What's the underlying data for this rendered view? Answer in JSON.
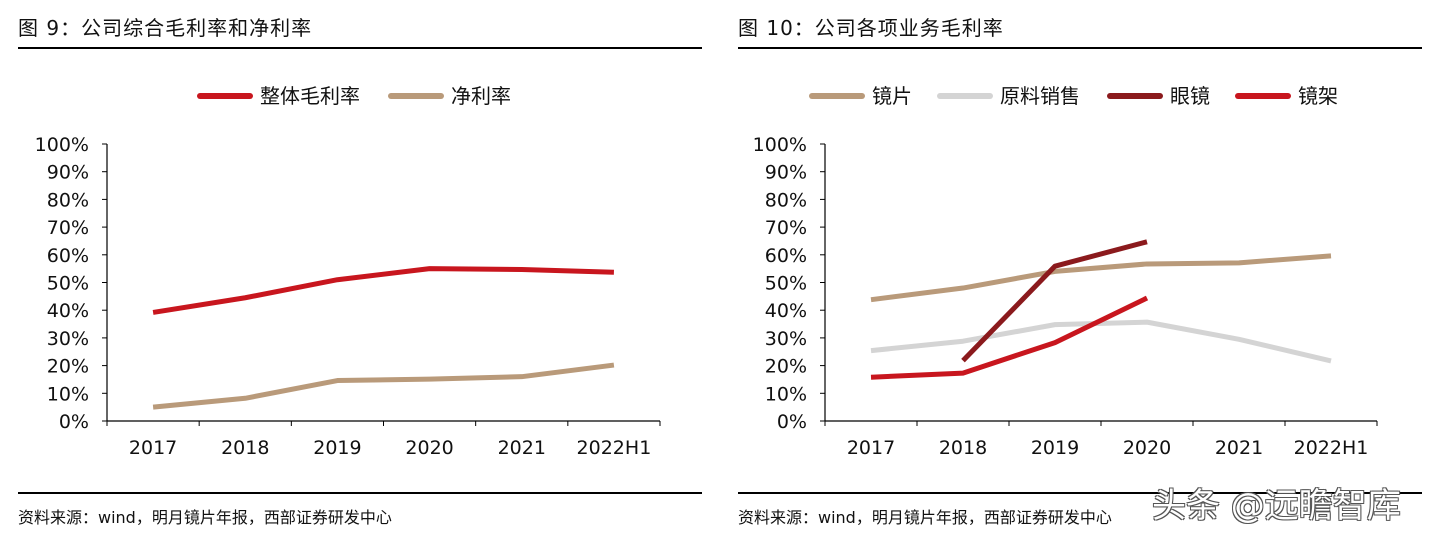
{
  "charts": [
    {
      "figure_title": "图 9：公司综合毛利率和净利率",
      "source": "资料来源：wind，明月镜片年报，西部证券研发中心",
      "chart_data": {
        "type": "line",
        "categories": [
          "2017",
          "2018",
          "2019",
          "2020",
          "2021",
          "2022H1"
        ],
        "y_ticks": [
          "0%",
          "10%",
          "20%",
          "30%",
          "40%",
          "50%",
          "60%",
          "70%",
          "80%",
          "90%",
          "100%"
        ],
        "ylim": [
          0,
          100
        ],
        "grid": false,
        "legend_position": "top",
        "series": [
          {
            "name": "整体毛利率",
            "color": "#c8161e",
            "values": [
              39.2,
              44.5,
              51,
              55,
              54.7,
              53.7
            ]
          },
          {
            "name": "净利率",
            "color": "#b99a7a",
            "values": [
              5,
              8.2,
              14.6,
              15.1,
              16,
              20.2
            ]
          }
        ]
      }
    },
    {
      "figure_title": "图 10：公司各项业务毛利率",
      "source": "资料来源：wind，明月镜片年报，西部证券研发中心",
      "chart_data": {
        "type": "line",
        "categories": [
          "2017",
          "2018",
          "2019",
          "2020",
          "2021",
          "2022H1"
        ],
        "y_ticks": [
          "0%",
          "10%",
          "20%",
          "30%",
          "40%",
          "50%",
          "60%",
          "70%",
          "80%",
          "90%",
          "100%"
        ],
        "ylim": [
          0,
          100
        ],
        "grid": false,
        "legend_position": "top",
        "series": [
          {
            "name": "镜片",
            "color": "#b99a7a",
            "values": [
              43.8,
              48,
              54,
              56.7,
              57.1,
              59.6
            ]
          },
          {
            "name": "原料销售",
            "color": "#d4d4d4",
            "values": [
              25.4,
              28.8,
              34.8,
              35.7,
              29.5,
              21.7
            ]
          },
          {
            "name": "眼镜",
            "color": "#8b1a1d",
            "values": [
              null,
              21.8,
              55.9,
              64.7,
              null,
              null
            ]
          },
          {
            "name": "镜架",
            "color": "#c8161e",
            "values": [
              15.8,
              17.3,
              28.3,
              44.4,
              null,
              null
            ]
          }
        ]
      }
    }
  ],
  "watermark": "头条 @远瞻智库"
}
